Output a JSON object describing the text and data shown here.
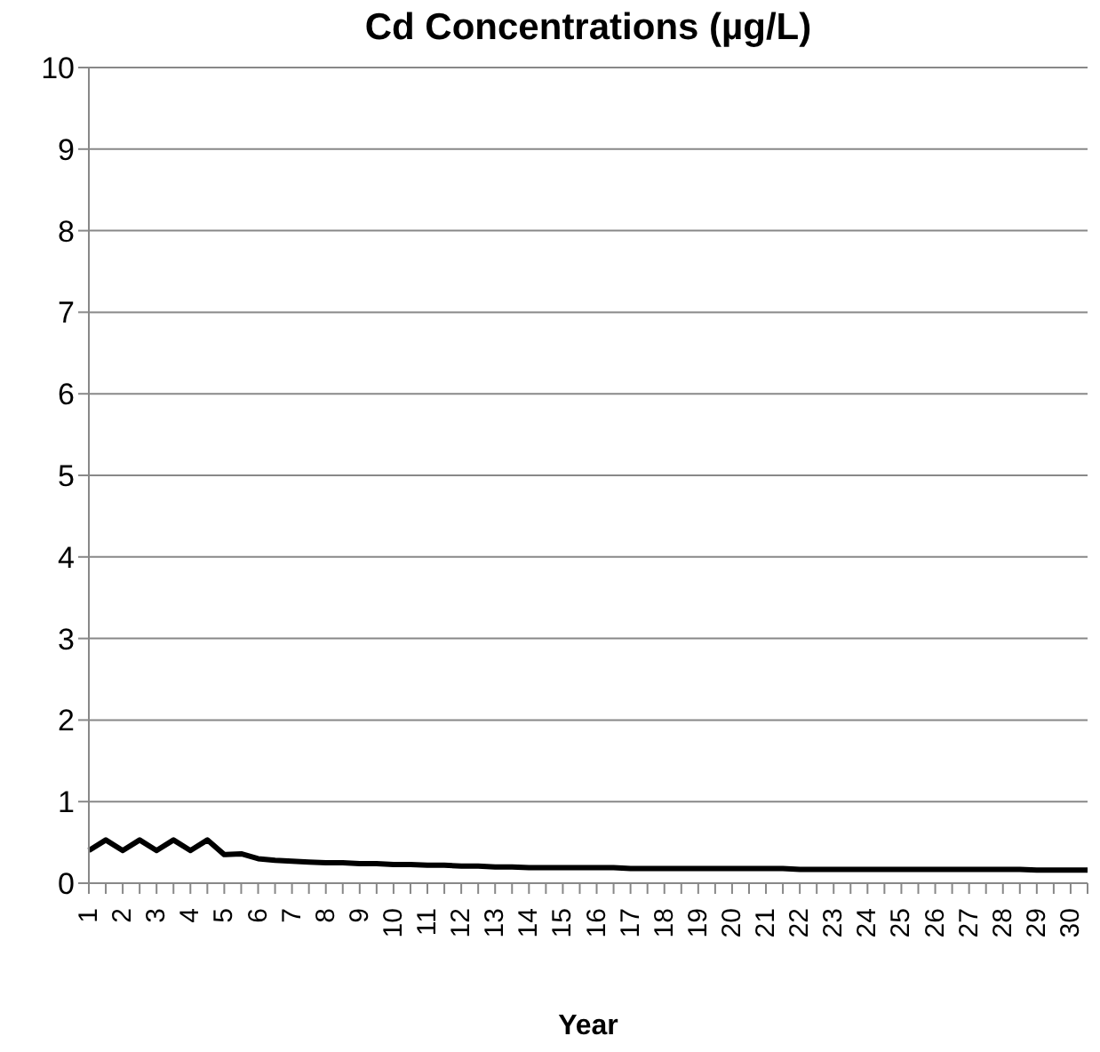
{
  "chart_data": {
    "type": "line",
    "title": "Cd Concentrations (µg/L)",
    "xlabel": "Year",
    "categories": [
      "1",
      null,
      "2",
      null,
      "3",
      null,
      "4",
      null,
      "5",
      null,
      "6",
      null,
      "7",
      null,
      "8",
      null,
      "9",
      null,
      "10",
      null,
      "11",
      null,
      "12",
      null,
      "13",
      null,
      "14",
      null,
      "15",
      null,
      "16",
      null,
      "17",
      null,
      "18",
      null,
      "19",
      null,
      "20",
      null,
      "21",
      null,
      "22",
      null,
      "23",
      null,
      "24",
      null,
      "25",
      null,
      "26",
      null,
      "27",
      null,
      "28",
      null,
      "29",
      null,
      "30",
      null
    ],
    "series": [
      {
        "color": "#000000",
        "values": [
          0.4,
          0.53,
          0.4,
          0.53,
          0.4,
          0.53,
          0.4,
          0.53,
          0.35,
          0.36,
          0.3,
          0.28,
          0.27,
          0.26,
          0.25,
          0.25,
          0.24,
          0.24,
          0.23,
          0.23,
          0.22,
          0.22,
          0.21,
          0.21,
          0.2,
          0.2,
          0.19,
          0.19,
          0.19,
          0.19,
          0.19,
          0.19,
          0.18,
          0.18,
          0.18,
          0.18,
          0.18,
          0.18,
          0.18,
          0.18,
          0.18,
          0.18,
          0.17,
          0.17,
          0.17,
          0.17,
          0.17,
          0.17,
          0.17,
          0.17,
          0.17,
          0.17,
          0.17,
          0.17,
          0.17,
          0.17,
          0.16,
          0.16,
          0.16,
          0.16
        ]
      }
    ],
    "ylim": [
      0,
      10
    ],
    "yticks": [
      0,
      1,
      2,
      3,
      4,
      5,
      6,
      7,
      8,
      9,
      10
    ],
    "grid": "y",
    "legend": false,
    "marker": "none",
    "line_style": "solid"
  }
}
